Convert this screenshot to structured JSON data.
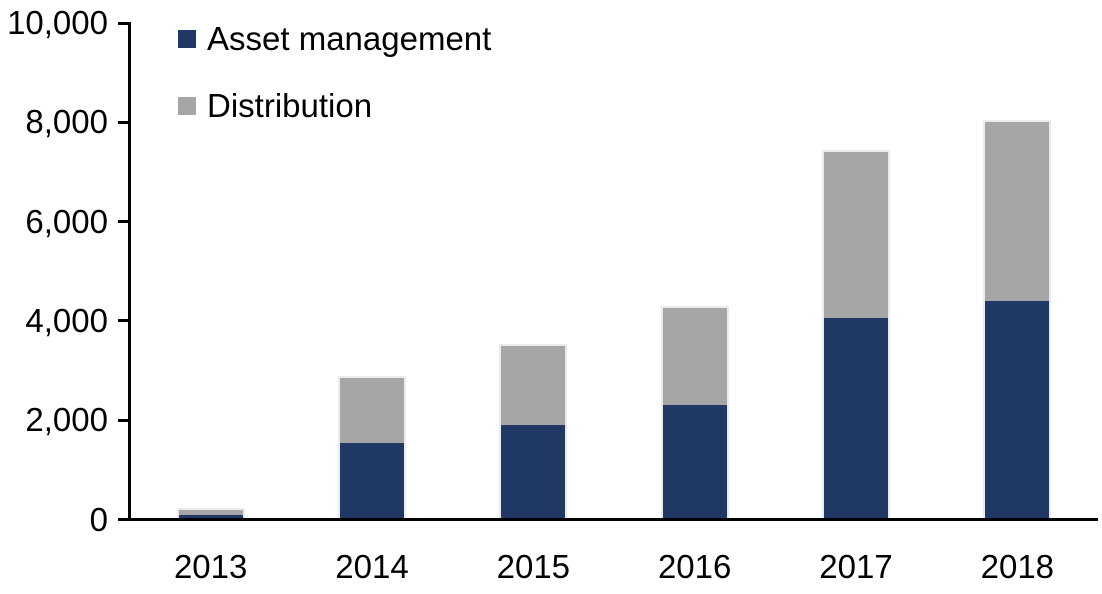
{
  "chart_data": {
    "type": "bar",
    "stacked": true,
    "title": "",
    "xlabel": "",
    "ylabel": "",
    "categories": [
      "2013",
      "2014",
      "2015",
      "2016",
      "2017",
      "2018"
    ],
    "series": [
      {
        "name": "Asset management",
        "color": "#1f3864",
        "values": [
          100,
          1550,
          1900,
          2300,
          4050,
          4400
        ]
      },
      {
        "name": "Distribution",
        "color": "#a6a6a6",
        "values": [
          100,
          1300,
          1600,
          1950,
          3350,
          3600
        ]
      }
    ],
    "totals": [
      200,
      2850,
      3500,
      4250,
      7400,
      8000
    ],
    "ylim": [
      0,
      10000
    ],
    "yticks": [
      {
        "value": 0,
        "label": "0"
      },
      {
        "value": 2000,
        "label": "2,000"
      },
      {
        "value": 4000,
        "label": "4,000"
      },
      {
        "value": 6000,
        "label": "6,000"
      },
      {
        "value": 8000,
        "label": "8,000"
      },
      {
        "value": 10000,
        "label": "10,000"
      }
    ],
    "grid": false,
    "legend_position": "top-left",
    "axis_color": "#000000",
    "bar_outline_color": "#ebebeb",
    "background_color": "#ffffff"
  }
}
